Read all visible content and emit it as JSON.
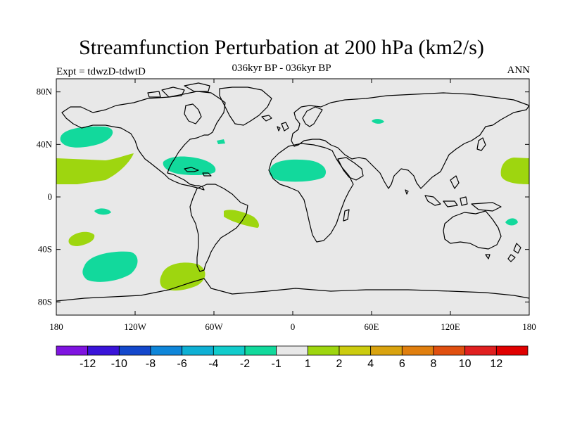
{
  "title": "Streamfunction Perturbation at 200 hPa (km2/s)",
  "subtitle": "036kyr BP - 036kyr BP",
  "left_label": "Expt = tdwzD-tdwtD",
  "right_label": "ANN",
  "axes": {
    "lat_ticks": [
      {
        "value": 80,
        "label": "80N"
      },
      {
        "value": 40,
        "label": "40N"
      },
      {
        "value": 0,
        "label": "0"
      },
      {
        "value": -40,
        "label": "40S"
      },
      {
        "value": -80,
        "label": "80S"
      }
    ],
    "lon_ticks": [
      {
        "value": -180,
        "label": "180"
      },
      {
        "value": -120,
        "label": "120W"
      },
      {
        "value": -60,
        "label": "60W"
      },
      {
        "value": 0,
        "label": "0"
      },
      {
        "value": 60,
        "label": "60E"
      },
      {
        "value": 120,
        "label": "120E"
      },
      {
        "value": 180,
        "label": "180"
      }
    ]
  },
  "colorbar": {
    "colors": [
      "#7f14e0",
      "#3a14d9",
      "#1448cc",
      "#0f86d9",
      "#0fb0d4",
      "#12cccc",
      "#12d99c",
      "#e8e8e8",
      "#9ed60f",
      "#cccc0f",
      "#d9a30f",
      "#e07f0f",
      "#e05010",
      "#e02020",
      "#e00000"
    ],
    "labels": [
      "-12",
      "-10",
      "-8",
      "-6",
      "-4",
      "-2",
      "-1",
      "1",
      "2",
      "4",
      "6",
      "8",
      "10",
      "12"
    ]
  },
  "colors": {
    "background": "#e8e8e8",
    "negative_fill": "#12d99c",
    "positive_fill": "#9ed60f"
  }
}
